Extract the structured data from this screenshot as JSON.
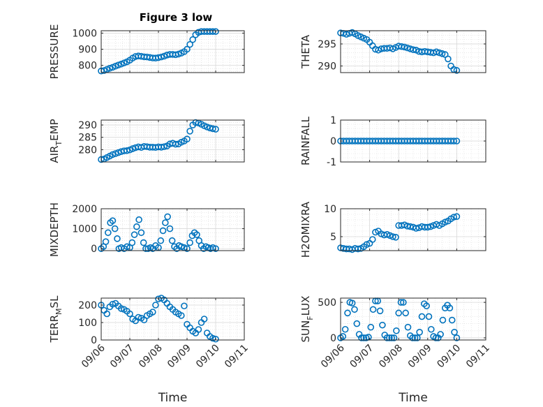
{
  "figure": {
    "title": "Figure 3 low"
  },
  "colors": {
    "marker": "#0072BD",
    "axis": "#262626",
    "grid": "#d9d9d9"
  },
  "chart_data": [
    {
      "id": "pressure",
      "type": "scatter",
      "title": "Figure 3 low",
      "ylabel": {
        "main": "PRESSURE"
      },
      "xlabel": "",
      "ylim": [
        755,
        1015
      ],
      "yticks": [
        800,
        900,
        1000
      ],
      "ytick_labels": [
        "800",
        "900",
        "1000"
      ],
      "xlim": [
        0,
        5
      ],
      "xticks": [
        0,
        1,
        2,
        3,
        4,
        5
      ],
      "xtick_labels": [],
      "grid": true,
      "series": [
        {
          "x": [
            0.0,
            0.1,
            0.2,
            0.3,
            0.4,
            0.5,
            0.6,
            0.7,
            0.8,
            0.9,
            1.0,
            1.1,
            1.2,
            1.3,
            1.4,
            1.5,
            1.6,
            1.7,
            1.8,
            1.9,
            2.0,
            2.1,
            2.2,
            2.3,
            2.4,
            2.5,
            2.6,
            2.7,
            2.8,
            2.9,
            3.0,
            3.1,
            3.2,
            3.3,
            3.4,
            3.5,
            3.6,
            3.7,
            3.8,
            3.9,
            4.0
          ],
          "y": [
            765,
            768,
            775,
            782,
            788,
            795,
            802,
            808,
            815,
            822,
            832,
            845,
            855,
            858,
            856,
            853,
            852,
            849,
            846,
            845,
            848,
            852,
            857,
            864,
            868,
            868,
            866,
            870,
            876,
            885,
            900,
            930,
            960,
            990,
            1005,
            1010,
            1010,
            1010,
            1010,
            1010,
            1010
          ]
        }
      ]
    },
    {
      "id": "theta",
      "type": "scatter",
      "ylabel": {
        "main": "THETA"
      },
      "xlabel": "",
      "ylim": [
        288.5,
        298
      ],
      "yticks": [
        290,
        295
      ],
      "ytick_labels": [
        "290",
        "295"
      ],
      "xlim": [
        0,
        5
      ],
      "xticks": [
        0,
        1,
        2,
        3,
        4,
        5
      ],
      "xtick_labels": [],
      "grid": true,
      "series": [
        {
          "x": [
            0.0,
            0.1,
            0.2,
            0.3,
            0.4,
            0.5,
            0.6,
            0.7,
            0.8,
            0.9,
            1.0,
            1.1,
            1.2,
            1.3,
            1.4,
            1.5,
            1.6,
            1.7,
            1.8,
            1.9,
            2.0,
            2.1,
            2.2,
            2.3,
            2.4,
            2.5,
            2.6,
            2.7,
            2.8,
            2.9,
            3.0,
            3.1,
            3.2,
            3.3,
            3.4,
            3.5,
            3.6,
            3.7,
            3.8,
            3.9,
            4.0
          ],
          "y": [
            297.5,
            297.4,
            297.2,
            297.4,
            297.6,
            297.3,
            296.9,
            296.6,
            296.3,
            296.0,
            295.4,
            294.6,
            293.8,
            293.6,
            293.9,
            294.0,
            294.0,
            294.1,
            293.9,
            294.2,
            294.5,
            294.4,
            294.3,
            294.1,
            293.9,
            293.7,
            293.6,
            293.3,
            293.2,
            293.3,
            293.2,
            293.1,
            293.0,
            293.2,
            293.0,
            292.8,
            292.6,
            291.6,
            290.0,
            289.2,
            289.0
          ]
        }
      ]
    },
    {
      "id": "air_temp",
      "type": "scatter",
      "ylabel": {
        "main": "AIR",
        "sub": "T",
        "tail": "EMP"
      },
      "xlabel": "",
      "ylim": [
        275,
        292
      ],
      "yticks": [
        280,
        285,
        290
      ],
      "ytick_labels": [
        "280",
        "285",
        "290"
      ],
      "xlim": [
        0,
        5
      ],
      "xticks": [
        0,
        1,
        2,
        3,
        4,
        5
      ],
      "xtick_labels": [],
      "grid": true,
      "series": [
        {
          "x": [
            0.0,
            0.1,
            0.2,
            0.3,
            0.4,
            0.5,
            0.6,
            0.7,
            0.8,
            0.9,
            1.0,
            1.1,
            1.2,
            1.3,
            1.4,
            1.5,
            1.6,
            1.7,
            1.8,
            1.9,
            2.0,
            2.1,
            2.2,
            2.3,
            2.4,
            2.5,
            2.6,
            2.7,
            2.8,
            2.9,
            3.0,
            3.1,
            3.2,
            3.3,
            3.4,
            3.5,
            3.6,
            3.7,
            3.8,
            3.9,
            4.0
          ],
          "y": [
            276.0,
            276.2,
            276.8,
            277.4,
            278.0,
            278.4,
            278.8,
            279.2,
            279.5,
            279.6,
            279.9,
            280.4,
            280.8,
            281.1,
            280.9,
            281.3,
            281.2,
            281.0,
            281.0,
            280.9,
            281.1,
            281.0,
            281.2,
            281.5,
            282.3,
            282.6,
            282.2,
            282.3,
            283.0,
            283.5,
            284.3,
            287.5,
            290.0,
            291.0,
            290.8,
            290.3,
            289.7,
            289.2,
            288.8,
            288.5,
            288.3
          ]
        }
      ]
    },
    {
      "id": "rainfall",
      "type": "scatter",
      "ylabel": {
        "main": "RAINFALL"
      },
      "xlabel": "",
      "ylim": [
        -1,
        1
      ],
      "yticks": [
        -1,
        0,
        1
      ],
      "ytick_labels": [
        "-1",
        "0",
        "1"
      ],
      "xlim": [
        0,
        5
      ],
      "xticks": [
        0,
        1,
        2,
        3,
        4,
        5
      ],
      "xtick_labels": [],
      "grid": true,
      "series": [
        {
          "x": [
            0.0,
            0.1,
            0.2,
            0.3,
            0.4,
            0.5,
            0.6,
            0.7,
            0.8,
            0.9,
            1.0,
            1.1,
            1.2,
            1.3,
            1.4,
            1.5,
            1.6,
            1.7,
            1.8,
            1.9,
            2.0,
            2.1,
            2.2,
            2.3,
            2.4,
            2.5,
            2.6,
            2.7,
            2.8,
            2.9,
            3.0,
            3.1,
            3.2,
            3.3,
            3.4,
            3.5,
            3.6,
            3.7,
            3.8,
            3.9,
            4.0
          ],
          "y": [
            0,
            0,
            0,
            0,
            0,
            0,
            0,
            0,
            0,
            0,
            0,
            0,
            0,
            0,
            0,
            0,
            0,
            0,
            0,
            0,
            0,
            0,
            0,
            0,
            0,
            0,
            0,
            0,
            0,
            0,
            0,
            0,
            0,
            0,
            0,
            0,
            0,
            0,
            0,
            0,
            0
          ]
        }
      ]
    },
    {
      "id": "mixdepth",
      "type": "scatter",
      "ylabel": {
        "main": "MIXDEPTH"
      },
      "xlabel": "",
      "ylim": [
        -100,
        2000
      ],
      "yticks": [
        0,
        1000,
        2000
      ],
      "ytick_labels": [
        "0",
        "1000",
        "2000"
      ],
      "xlim": [
        0,
        5
      ],
      "xticks": [
        0,
        1,
        2,
        3,
        4,
        5
      ],
      "xtick_labels": [],
      "grid": true,
      "series": [
        {
          "x": [
            0.0,
            0.08,
            0.16,
            0.24,
            0.32,
            0.4,
            0.48,
            0.56,
            0.62,
            0.7,
            0.8,
            0.9,
            1.0,
            1.08,
            1.16,
            1.24,
            1.32,
            1.4,
            1.48,
            1.56,
            1.64,
            1.72,
            1.8,
            1.9,
            2.0,
            2.08,
            2.16,
            2.24,
            2.32,
            2.4,
            2.48,
            2.56,
            2.64,
            2.72,
            2.8,
            2.9,
            3.0,
            3.1,
            3.18,
            3.26,
            3.34,
            3.42,
            3.5,
            3.58,
            3.66,
            3.74,
            3.82,
            3.9,
            4.0
          ],
          "y": [
            0,
            100,
            350,
            800,
            1300,
            1400,
            1000,
            500,
            0,
            50,
            0,
            100,
            50,
            300,
            700,
            1100,
            1450,
            800,
            300,
            0,
            0,
            50,
            0,
            150,
            50,
            400,
            900,
            1300,
            1600,
            1000,
            400,
            100,
            0,
            150,
            100,
            50,
            0,
            300,
            650,
            800,
            700,
            400,
            150,
            0,
            100,
            50,
            0,
            50,
            0
          ]
        }
      ]
    },
    {
      "id": "h2omixra",
      "type": "scatter",
      "ylabel": {
        "main": "H2OMIXRA"
      },
      "xlabel": "",
      "ylim": [
        2.5,
        10
      ],
      "yticks": [
        5,
        10
      ],
      "ytick_labels": [
        "5",
        "10"
      ],
      "xlim": [
        0,
        5
      ],
      "xticks": [
        0,
        1,
        2,
        3,
        4,
        5
      ],
      "xtick_labels": [],
      "grid": true,
      "series": [
        {
          "x": [
            0.0,
            0.1,
            0.2,
            0.3,
            0.4,
            0.5,
            0.6,
            0.7,
            0.8,
            0.9,
            1.0,
            1.1,
            1.2,
            1.3,
            1.4,
            1.5,
            1.6,
            1.7,
            1.8,
            1.9,
            2.0,
            2.1,
            2.2,
            2.3,
            2.4,
            2.5,
            2.6,
            2.7,
            2.8,
            2.9,
            3.0,
            3.1,
            3.2,
            3.3,
            3.4,
            3.5,
            3.6,
            3.7,
            3.8,
            3.9,
            4.0
          ],
          "y": [
            3.0,
            2.9,
            2.8,
            2.8,
            2.7,
            2.9,
            2.8,
            2.9,
            3.2,
            3.6,
            3.8,
            4.5,
            5.8,
            6.0,
            5.5,
            5.3,
            5.4,
            5.2,
            5.0,
            4.9,
            7.0,
            7.0,
            7.1,
            6.9,
            6.8,
            6.7,
            6.5,
            6.6,
            6.8,
            6.7,
            6.7,
            6.8,
            7.0,
            7.2,
            7.0,
            7.3,
            7.6,
            7.8,
            8.2,
            8.5,
            8.6
          ]
        }
      ]
    },
    {
      "id": "terr_msl",
      "type": "scatter",
      "ylabel": {
        "main": "TERR",
        "sub": "M",
        "tail": "SL"
      },
      "xlabel": "Time",
      "ylim": [
        0,
        240
      ],
      "yticks": [
        0,
        100,
        200
      ],
      "ytick_labels": [
        "0",
        "100",
        "200"
      ],
      "xlim": [
        0,
        5
      ],
      "xticks": [
        0,
        1,
        2,
        3,
        4,
        5
      ],
      "xtick_labels": [
        "09/06",
        "09/07",
        "09/08",
        "09/09",
        "09/10",
        "09/11"
      ],
      "grid": true,
      "series": [
        {
          "x": [
            0.0,
            0.1,
            0.2,
            0.3,
            0.4,
            0.5,
            0.6,
            0.7,
            0.8,
            0.9,
            1.0,
            1.1,
            1.2,
            1.3,
            1.4,
            1.5,
            1.6,
            1.7,
            1.8,
            1.9,
            2.0,
            2.1,
            2.2,
            2.3,
            2.4,
            2.5,
            2.6,
            2.7,
            2.8,
            2.9,
            3.0,
            3.1,
            3.2,
            3.3,
            3.4,
            3.5,
            3.6,
            3.7,
            3.8,
            3.9,
            4.0
          ],
          "y": [
            200,
            170,
            150,
            190,
            205,
            210,
            195,
            180,
            175,
            165,
            150,
            120,
            110,
            130,
            125,
            115,
            140,
            150,
            160,
            200,
            235,
            240,
            230,
            210,
            190,
            175,
            160,
            150,
            140,
            195,
            90,
            70,
            50,
            40,
            60,
            100,
            120,
            40,
            20,
            10,
            5
          ]
        }
      ]
    },
    {
      "id": "sun_flux",
      "type": "scatter",
      "ylabel": {
        "main": "SUN",
        "sub": "F",
        "tail": "LUX"
      },
      "xlabel": "Time",
      "ylim": [
        -30,
        560
      ],
      "yticks": [
        0,
        500
      ],
      "ytick_labels": [
        "0",
        "500"
      ],
      "xlim": [
        0,
        5
      ],
      "xticks": [
        0,
        1,
        2,
        3,
        4,
        5
      ],
      "xtick_labels": [
        "09/06",
        "09/07",
        "09/08",
        "09/09",
        "09/10",
        "09/11"
      ],
      "grid": true,
      "series": [
        {
          "x": [
            0.0,
            0.08,
            0.16,
            0.24,
            0.32,
            0.4,
            0.48,
            0.56,
            0.64,
            0.72,
            0.8,
            0.88,
            0.96,
            1.04,
            1.12,
            1.2,
            1.28,
            1.36,
            1.44,
            1.52,
            1.6,
            1.68,
            1.76,
            1.84,
            1.92,
            2.0,
            2.08,
            2.16,
            2.24,
            2.32,
            2.4,
            2.48,
            2.56,
            2.64,
            2.72,
            2.8,
            2.88,
            2.96,
            3.04,
            3.12,
            3.2,
            3.28,
            3.36,
            3.44,
            3.52,
            3.6,
            3.68,
            3.76,
            3.84,
            3.92,
            4.0
          ],
          "y": [
            0,
            20,
            120,
            350,
            500,
            490,
            400,
            200,
            50,
            0,
            0,
            0,
            10,
            150,
            400,
            520,
            520,
            380,
            180,
            40,
            0,
            0,
            0,
            0,
            100,
            350,
            500,
            500,
            350,
            150,
            30,
            0,
            0,
            0,
            80,
            300,
            480,
            450,
            300,
            120,
            20,
            0,
            0,
            50,
            250,
            420,
            460,
            420,
            250,
            80,
            0
          ]
        }
      ]
    }
  ]
}
